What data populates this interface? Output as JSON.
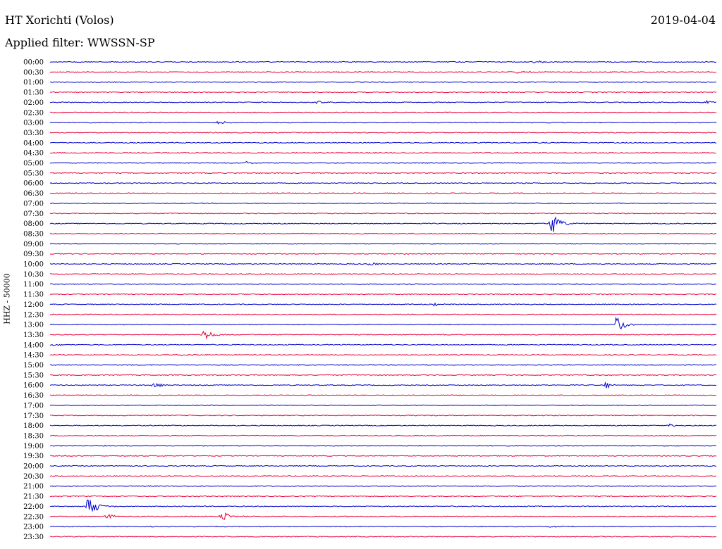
{
  "header": {
    "station": "HT Xorichti (Volos)",
    "filter": "Applied filter: WWSSN-SP",
    "date": "2019-04-04"
  },
  "colors": {
    "even_row": "#0000cc",
    "odd_row": "#e8003a"
  },
  "chart_data": {
    "type": "line",
    "ylabel": "HHZ - 50000",
    "row_labels": [
      "00:00",
      "00:30",
      "01:00",
      "01:30",
      "02:00",
      "02:30",
      "03:00",
      "03:30",
      "04:00",
      "04:30",
      "05:00",
      "05:30",
      "06:00",
      "06:30",
      "07:00",
      "07:30",
      "08:00",
      "08:30",
      "09:00",
      "09:30",
      "10:00",
      "10:30",
      "11:00",
      "11:30",
      "12:00",
      "12:30",
      "13:00",
      "13:30",
      "14:00",
      "14:30",
      "15:00",
      "15:30",
      "16:00",
      "16:30",
      "17:00",
      "17:30",
      "18:00",
      "18:30",
      "19:00",
      "19:30",
      "20:00",
      "20:30",
      "21:00",
      "21:30",
      "22:00",
      "22:30",
      "23:00",
      "23:30"
    ],
    "row_minutes": 30,
    "events": [
      {
        "row": 0,
        "minute": 21.8,
        "amp": 0.35
      },
      {
        "row": 1,
        "minute": 21.0,
        "amp": 0.25
      },
      {
        "row": 4,
        "minute": 12.0,
        "amp": 0.4
      },
      {
        "row": 4,
        "minute": 29.5,
        "amp": 0.35
      },
      {
        "row": 6,
        "minute": 7.5,
        "amp": 0.55
      },
      {
        "row": 10,
        "minute": 8.8,
        "amp": 0.3
      },
      {
        "row": 16,
        "minute": 22.5,
        "amp": 3.0
      },
      {
        "row": 20,
        "minute": 14.4,
        "amp": 0.45
      },
      {
        "row": 24,
        "minute": 17.3,
        "amp": 0.3
      },
      {
        "row": 26,
        "minute": 25.5,
        "amp": 2.0
      },
      {
        "row": 27,
        "minute": 6.9,
        "amp": 1.6
      },
      {
        "row": 28,
        "minute": 0.2,
        "amp": 0.35
      },
      {
        "row": 29,
        "minute": 5.7,
        "amp": 0.35
      },
      {
        "row": 32,
        "minute": 4.6,
        "amp": 0.6
      },
      {
        "row": 32,
        "minute": 25.0,
        "amp": 0.8
      },
      {
        "row": 36,
        "minute": 27.9,
        "amp": 0.35
      },
      {
        "row": 44,
        "minute": 1.7,
        "amp": 2.6
      },
      {
        "row": 45,
        "minute": 2.5,
        "amp": 0.7
      },
      {
        "row": 45,
        "minute": 7.7,
        "amp": 1.4
      },
      {
        "row": 46,
        "minute": 22.5,
        "amp": 0.25
      }
    ]
  }
}
